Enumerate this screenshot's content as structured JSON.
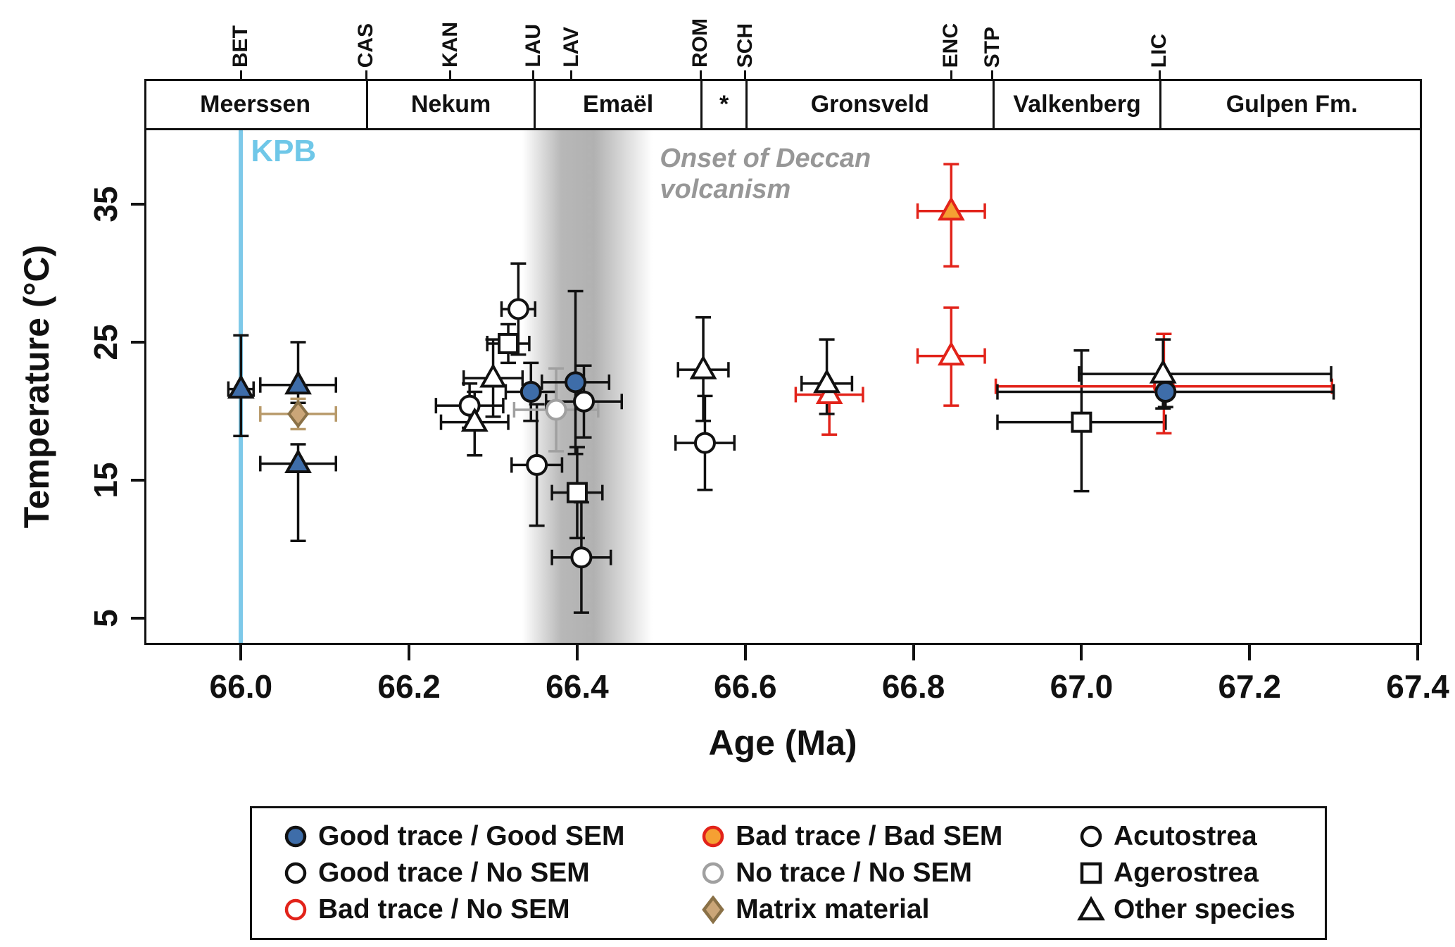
{
  "figure": {
    "kpb_label": "KPB",
    "deccan_label_line1": "Onset of Deccan",
    "deccan_label_line2": "volcanism"
  },
  "chart_data": {
    "type": "scatter",
    "title": "",
    "xlabel": "Age (Ma)",
    "ylabel": "Temperature (°C)",
    "xlim": [
      65.885,
      67.405
    ],
    "ylim": [
      3.06,
      40.51
    ],
    "grid": false,
    "x_ticks": [
      66.0,
      66.2,
      66.4,
      66.6,
      66.8,
      67.0,
      67.2,
      67.4
    ],
    "x_tick_labels": [
      "66.0",
      "66.2",
      "66.4",
      "66.6",
      "66.8",
      "67.0",
      "67.2",
      "67.4"
    ],
    "y_ticks": [
      5,
      15,
      25,
      35
    ],
    "y_tick_labels": [
      "5",
      "15",
      "25",
      "35"
    ],
    "top_axis_ticks": [
      {
        "label": "BET",
        "age": 66.0
      },
      {
        "label": "CAS",
        "age": 66.149
      },
      {
        "label": "KAN",
        "age": 66.249
      },
      {
        "label": "LAU",
        "age": 66.348
      },
      {
        "label": "LAV",
        "age": 66.393
      },
      {
        "label": "ROM",
        "age": 66.547
      },
      {
        "label": "SCH",
        "age": 66.6
      },
      {
        "label": "ENC",
        "age": 66.845
      },
      {
        "label": "STP",
        "age": 66.894
      },
      {
        "label": "LIC",
        "age": 67.093
      }
    ],
    "formations": [
      {
        "label": "Meerssen",
        "from": 65.885,
        "to": 66.149
      },
      {
        "label": "Nekum",
        "from": 66.149,
        "to": 66.348
      },
      {
        "label": "Emaël",
        "from": 66.348,
        "to": 66.547
      },
      {
        "label": "*",
        "from": 66.547,
        "to": 66.6
      },
      {
        "label": "Gronsveld",
        "from": 66.6,
        "to": 66.894
      },
      {
        "label": "Valkenberg",
        "from": 66.894,
        "to": 67.093
      },
      {
        "label": "Gulpen Fm.",
        "from": 67.093,
        "to": 67.405
      }
    ],
    "kpb_line": {
      "age": 66.0,
      "color": "#7EC9E9"
    },
    "deccan_band": {
      "from": 66.335,
      "to": 66.49,
      "line_age": 66.414
    },
    "colors": {
      "blue": "#3E6DA9",
      "orange": "#F5A033",
      "red": "#E2231A",
      "gray": "#A0A0A0",
      "tan_fill": "#CBA678",
      "tan_stroke": "#8A7147",
      "tan_err": "#B89A6A",
      "black": "#111111"
    },
    "points": [
      {
        "age": 66.0,
        "temp": 21.6,
        "xm": 0.015,
        "xp": 0.015,
        "ym": 3.4,
        "yp": 3.9,
        "marker": "triangle",
        "fill": "#3E6DA9",
        "stroke": "#111111",
        "err": "#111111"
      },
      {
        "age": 66.068,
        "temp": 21.9,
        "xm": 0.045,
        "xp": 0.045,
        "ym": 1.3,
        "yp": 3.1,
        "marker": "triangle",
        "fill": "#3E6DA9",
        "stroke": "#111111",
        "err": "#111111"
      },
      {
        "age": 66.068,
        "temp": 19.8,
        "xm": 0.045,
        "xp": 0.045,
        "ym": 1.1,
        "yp": 1.1,
        "marker": "diamond",
        "fill": "#CBA678",
        "stroke": "#8A7147",
        "err": "#B89A6A"
      },
      {
        "age": 66.068,
        "temp": 16.2,
        "xm": 0.045,
        "xp": 0.045,
        "ym": 5.6,
        "yp": 1.4,
        "marker": "triangle",
        "fill": "#3E6DA9",
        "stroke": "#111111",
        "err": "#111111"
      },
      {
        "age": 66.272,
        "temp": 20.4,
        "xm": 0.04,
        "xp": 0.04,
        "ym": 1.6,
        "yp": 1.6,
        "marker": "circle",
        "fill": "#FFFFFF",
        "stroke": "#111111",
        "err": "#111111"
      },
      {
        "age": 66.278,
        "temp": 19.2,
        "xm": 0.04,
        "xp": 0.04,
        "ym": 2.4,
        "yp": 2.2,
        "marker": "triangle",
        "fill": "#FFFFFF",
        "stroke": "#111111",
        "err": "#111111"
      },
      {
        "age": 66.3,
        "temp": 22.4,
        "xm": 0.035,
        "xp": 0.035,
        "ym": 2.8,
        "yp": 2.8,
        "marker": "triangle",
        "fill": "#FFFFFF",
        "stroke": "#111111",
        "err": "#111111"
      },
      {
        "age": 66.318,
        "temp": 24.9,
        "xm": 0.025,
        "xp": 0.025,
        "ym": 1.4,
        "yp": 1.4,
        "marker": "square",
        "fill": "#FFFFFF",
        "stroke": "#111111",
        "err": "#111111"
      },
      {
        "age": 66.33,
        "temp": 27.4,
        "xm": 0.02,
        "xp": 0.02,
        "ym": 3.3,
        "yp": 3.3,
        "marker": "circle",
        "fill": "#FFFFFF",
        "stroke": "#111111",
        "err": "#111111"
      },
      {
        "age": 66.345,
        "temp": 21.4,
        "xm": 0.03,
        "xp": 0.03,
        "ym": 2.1,
        "yp": 2.1,
        "marker": "circle",
        "fill": "#3E6DA9",
        "stroke": "#111111",
        "err": "#111111"
      },
      {
        "age": 66.352,
        "temp": 16.1,
        "xm": 0.03,
        "xp": 0.03,
        "ym": 4.4,
        "yp": 4.4,
        "marker": "circle",
        "fill": "#FFFFFF",
        "stroke": "#111111",
        "err": "#111111"
      },
      {
        "age": 66.375,
        "temp": 20.1,
        "xm": 0.05,
        "xp": 0.05,
        "ym": 3.0,
        "yp": 3.0,
        "marker": "circle",
        "fill": "#FFFFFF",
        "stroke": "#A0A0A0",
        "err": "#A0A0A0"
      },
      {
        "age": 66.398,
        "temp": 22.1,
        "xm": 0.04,
        "xp": 0.04,
        "ym": 5.2,
        "yp": 6.6,
        "marker": "circle",
        "fill": "#3E6DA9",
        "stroke": "#111111",
        "err": "#111111"
      },
      {
        "age": 66.408,
        "temp": 20.7,
        "xm": 0.045,
        "xp": 0.045,
        "ym": 2.6,
        "yp": 2.6,
        "marker": "circle",
        "fill": "#FFFFFF",
        "stroke": "#111111",
        "err": "#111111"
      },
      {
        "age": 66.4,
        "temp": 14.1,
        "xm": 0.03,
        "xp": 0.03,
        "ym": 3.3,
        "yp": 3.3,
        "marker": "square",
        "fill": "#FFFFFF",
        "stroke": "#111111",
        "err": "#111111"
      },
      {
        "age": 66.405,
        "temp": 9.4,
        "xm": 0.035,
        "xp": 0.035,
        "ym": 4.0,
        "yp": 4.0,
        "marker": "circle",
        "fill": "#FFFFFF",
        "stroke": "#111111",
        "err": "#111111"
      },
      {
        "age": 66.55,
        "temp": 23.0,
        "xm": 0.03,
        "xp": 0.03,
        "ym": 3.7,
        "yp": 3.8,
        "marker": "triangle",
        "fill": "#FFFFFF",
        "stroke": "#111111",
        "err": "#111111"
      },
      {
        "age": 66.552,
        "temp": 17.7,
        "xm": 0.035,
        "xp": 0.035,
        "ym": 3.4,
        "yp": 3.4,
        "marker": "circle",
        "fill": "#FFFFFF",
        "stroke": "#111111",
        "err": "#111111"
      },
      {
        "age": 66.7,
        "temp": 21.2,
        "xm": 0.04,
        "xp": 0.04,
        "ym": 2.9,
        "yp": 0.8,
        "marker": "triangle",
        "fill": "#FFFFFF",
        "stroke": "#E2231A",
        "err": "#E2231A"
      },
      {
        "age": 66.697,
        "temp": 22.0,
        "xm": 0.03,
        "xp": 0.03,
        "ym": 2.2,
        "yp": 3.2,
        "marker": "triangle",
        "fill": "#FFFFFF",
        "stroke": "#111111",
        "err": "#111111"
      },
      {
        "age": 66.845,
        "temp": 34.5,
        "xm": 0.04,
        "xp": 0.04,
        "ym": 4.0,
        "yp": 3.4,
        "marker": "triangle",
        "fill": "#F5A033",
        "stroke": "#E2231A",
        "err": "#E2231A"
      },
      {
        "age": 66.845,
        "temp": 24.0,
        "xm": 0.04,
        "xp": 0.04,
        "ym": 3.6,
        "yp": 3.5,
        "marker": "triangle",
        "fill": "#FFFFFF",
        "stroke": "#E2231A",
        "err": "#E2231A"
      },
      {
        "age": 67.0,
        "temp": 19.2,
        "xm": 0.1,
        "xp": 0.1,
        "ym": 5.0,
        "yp": 5.2,
        "marker": "square",
        "fill": "#FFFFFF",
        "stroke": "#111111",
        "err": "#111111"
      },
      {
        "age": 67.098,
        "temp": 21.8,
        "xm": 0.2,
        "xp": 0.2,
        "ym": 3.4,
        "yp": 3.8,
        "marker": "circle",
        "fill": "#FFFFFF",
        "stroke": "#E2231A",
        "err": "#E2231A"
      },
      {
        "age": 67.097,
        "temp": 22.7,
        "xm": 0.1,
        "xp": 0.2,
        "ym": 2.5,
        "yp": 2.5,
        "marker": "triangle",
        "fill": "#FFFFFF",
        "stroke": "#111111",
        "err": "#111111"
      },
      {
        "age": 67.1,
        "temp": 21.4,
        "xm": 0.2,
        "xp": 0.2,
        "ym": 1.1,
        "yp": 1.3,
        "marker": "circle",
        "fill": "#3E6DA9",
        "stroke": "#111111",
        "err": "#111111"
      }
    ]
  },
  "legend": {
    "columns": [
      {
        "items": [
          {
            "shape": "circle",
            "fill": "#3E6DA9",
            "stroke": "#111111",
            "label": "Good trace / Good SEM"
          },
          {
            "shape": "circle",
            "fill": "#FFFFFF",
            "stroke": "#111111",
            "label": "Good trace / No SEM"
          },
          {
            "shape": "circle",
            "fill": "#FFFFFF",
            "stroke": "#E2231A",
            "label": "Bad trace / No SEM"
          }
        ]
      },
      {
        "items": [
          {
            "shape": "circle",
            "fill": "#F5A033",
            "stroke": "#E2231A",
            "label": "Bad trace / Bad SEM"
          },
          {
            "shape": "circle",
            "fill": "#FFFFFF",
            "stroke": "#A0A0A0",
            "label": "No trace / No SEM"
          },
          {
            "shape": "diamond",
            "fill": "#CBA678",
            "stroke": "#8A7147",
            "label": "Matrix material"
          }
        ]
      },
      {
        "items": [
          {
            "shape": "circle",
            "fill": "#FFFFFF",
            "stroke": "#111111",
            "label": "Acutostrea"
          },
          {
            "shape": "square",
            "fill": "#FFFFFF",
            "stroke": "#111111",
            "label": "Agerostrea"
          },
          {
            "shape": "triangle",
            "fill": "#FFFFFF",
            "stroke": "#111111",
            "label": "Other species"
          }
        ]
      }
    ]
  }
}
